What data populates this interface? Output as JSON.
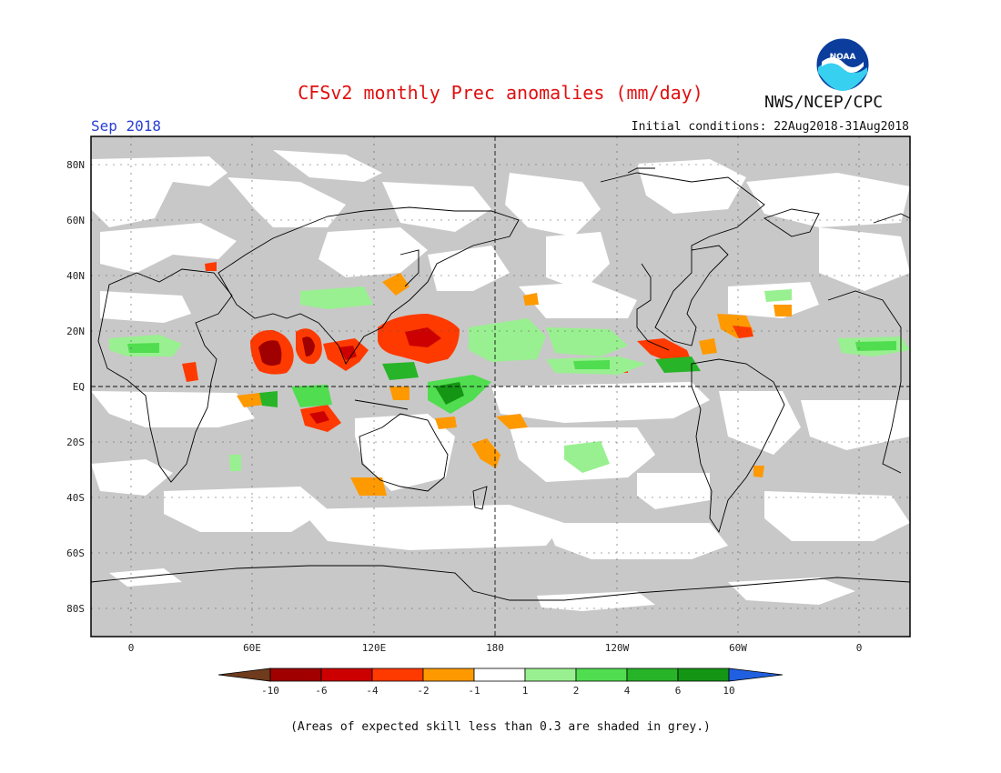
{
  "header": {
    "title": "CFSv2 monthly Prec anomalies (mm/day)",
    "month": "Sep 2018",
    "initial_conditions": "Initial conditions: 22Aug2018-31Aug2018",
    "agency": "NWS/NCEP/CPC",
    "logo_label": "NOAA"
  },
  "map": {
    "lat_labels": [
      "80N",
      "60N",
      "40N",
      "20N",
      "EQ",
      "20S",
      "40S",
      "60S",
      "80S"
    ],
    "lon_labels": [
      "0",
      "60E",
      "120E",
      "180",
      "120W",
      "60W",
      "0"
    ],
    "colors": {
      "skill_grey": "#c8c8c8",
      "neutral": "#ffffff",
      "coast": "#000000"
    }
  },
  "colorbar": {
    "labels": [
      "-10",
      "-6",
      "-4",
      "-2",
      "-1",
      "1",
      "2",
      "4",
      "6",
      "10"
    ],
    "colors": [
      "#6e3b1c",
      "#a00000",
      "#cc0000",
      "#ff3a00",
      "#ff9900",
      "#ffffff",
      "#99f090",
      "#50dd50",
      "#28b428",
      "#149614",
      "#2060e0"
    ]
  },
  "footnote": "(Areas of expected skill less than 0.3 are shaded in grey.)"
}
